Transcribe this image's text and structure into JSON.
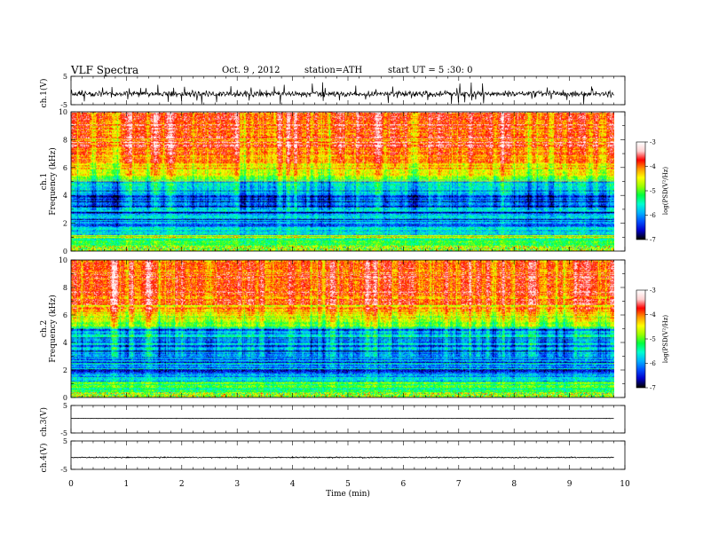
{
  "header": {
    "title": "VLF  Spectra",
    "date": "Oct. 9  , 2012",
    "station": "station=ATH",
    "start": "start  UT  =   5  :30: 0"
  },
  "chart_data": {
    "type": "heatmap",
    "xlabel": "Time  (min)",
    "xlim": [
      0,
      10
    ],
    "x_ticks": [
      "0",
      "1",
      "2",
      "3",
      "4",
      "5",
      "6",
      "7",
      "8",
      "9",
      "10"
    ],
    "data_end_min": 9.8,
    "panels": [
      {
        "id": "ch1-waveform",
        "kind": "waveform",
        "ylabel": "ch.1(V)",
        "ylim": [
          -5,
          5
        ],
        "y_ticks": [
          "5",
          "-5"
        ],
        "baseline": -1.2,
        "noise": 0.9
      },
      {
        "id": "ch1-spectrogram",
        "kind": "spectrogram",
        "ylabel_top": "ch.1",
        "ylabel": "Frequency  (kHz)",
        "ylim": [
          0,
          10
        ],
        "y_ticks": [
          "0",
          "2",
          "4",
          "6",
          "8",
          "10"
        ],
        "colorbar": {
          "label": "log(PSD(V²/Hz)",
          "range": [
            -7,
            -3
          ],
          "ticks": [
            "-3",
            "-4",
            "-5",
            "-6",
            "-7"
          ]
        }
      },
      {
        "id": "ch2-spectrogram",
        "kind": "spectrogram",
        "ylabel_top": "ch.2",
        "ylabel": "Frequency  (kHz)",
        "ylim": [
          0,
          10
        ],
        "y_ticks": [
          "0",
          "2",
          "4",
          "6",
          "8",
          "10"
        ],
        "colorbar": {
          "label": "log(PSD(V²/Hz)",
          "range": [
            -7,
            -3
          ],
          "ticks": [
            "-3",
            "-4",
            "-5",
            "-6",
            "-7"
          ]
        }
      },
      {
        "id": "ch3-waveform",
        "kind": "waveform",
        "ylabel": "ch.3(V)",
        "ylim": [
          -5,
          5
        ],
        "y_ticks": [
          "5",
          "-5"
        ],
        "baseline": 0.3,
        "noise": 0.06
      },
      {
        "id": "ch4-waveform",
        "kind": "waveform",
        "ylabel": "ch.4(V)",
        "ylim": [
          -5,
          5
        ],
        "y_ticks": [
          "5",
          "-5"
        ],
        "baseline": -0.8,
        "noise": 0.18
      }
    ],
    "colormap": [
      "#000000",
      "#0000cc",
      "#0050ff",
      "#00b4ff",
      "#00ffd0",
      "#00ff40",
      "#9cff00",
      "#ffff00",
      "#ff9800",
      "#ff0000",
      "#ffd0d0",
      "#ffffff"
    ]
  }
}
